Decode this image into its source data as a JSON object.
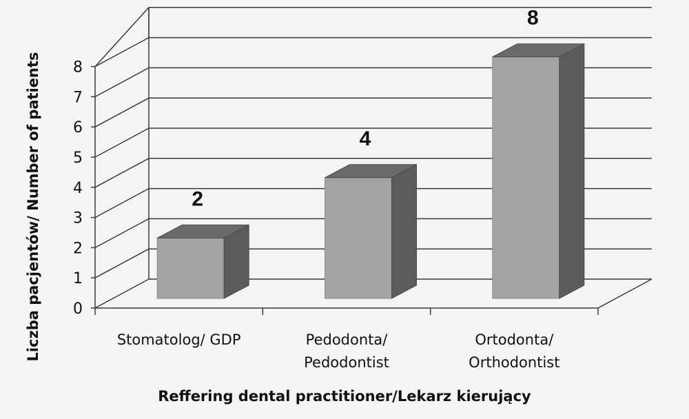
{
  "chart_data": {
    "type": "bar",
    "categories": [
      [
        "Stomatolog/ GDP"
      ],
      [
        "Pedodonta/",
        "Pedodontist"
      ],
      [
        "Ortodonta/",
        "Orthodontist"
      ]
    ],
    "values": [
      2,
      4,
      8
    ],
    "data_labels": [
      "2",
      "4",
      "8"
    ],
    "xlabel": "Reffering dental practitioner/Lekarz kierujący",
    "ylabel": "Liczba pacjentów/ Number of patients",
    "ylim": [
      0,
      8
    ],
    "yticks": [
      "0",
      "1",
      "2",
      "3",
      "4",
      "5",
      "6",
      "7",
      "8"
    ],
    "grid": true,
    "style": "3d-column",
    "colors": {
      "background": "#f4f4f4",
      "bar_front": "#a3a3a3",
      "bar_side": "#5b5b5b",
      "bar_top": "#6a6a6a",
      "grid": "#3a3a3a"
    }
  }
}
